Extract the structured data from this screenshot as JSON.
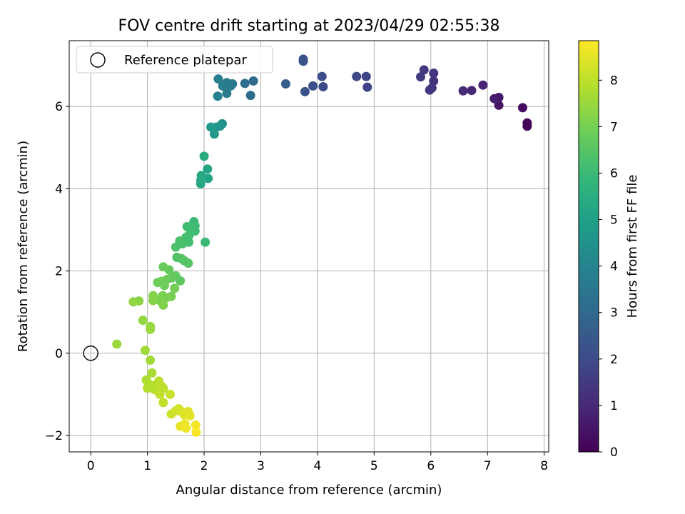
{
  "chart_data": {
    "type": "scatter",
    "title": "FOV centre drift starting at 2023/04/29 02:55:38",
    "xlabel": "Angular distance from reference (arcmin)",
    "ylabel": "Rotation from reference (arcmin)",
    "xlim": [
      -0.38,
      8.08
    ],
    "ylim": [
      -2.4,
      7.6
    ],
    "xticks": [
      0,
      1,
      2,
      3,
      4,
      5,
      6,
      7,
      8
    ],
    "yticks": [
      -2,
      0,
      2,
      4,
      6
    ],
    "xtick_labels": [
      "0",
      "1",
      "2",
      "3",
      "4",
      "5",
      "6",
      "7",
      "8"
    ],
    "ytick_labels": [
      "−2",
      "0",
      "2",
      "4",
      "6"
    ],
    "grid": true,
    "legend": {
      "position": "top-left",
      "entries": [
        "Reference platepar"
      ]
    },
    "reference_point": {
      "x": 0,
      "y": 0
    },
    "colorbar": {
      "label": "Hours from first FF file",
      "colormap": "viridis",
      "range": [
        0,
        8.85
      ],
      "ticks": [
        0,
        1,
        2,
        3,
        4,
        5,
        6,
        7,
        8
      ],
      "tick_labels": [
        "0",
        "1",
        "2",
        "3",
        "4",
        "5",
        "6",
        "7",
        "8"
      ]
    },
    "points": [
      {
        "x": 7.7,
        "y": 5.52,
        "c": 0.05
      },
      {
        "x": 7.7,
        "y": 5.6,
        "c": 0.1
      },
      {
        "x": 7.62,
        "y": 5.97,
        "c": 0.3
      },
      {
        "x": 7.2,
        "y": 6.03,
        "c": 0.5
      },
      {
        "x": 7.2,
        "y": 6.22,
        "c": 0.6
      },
      {
        "x": 7.12,
        "y": 6.19,
        "c": 0.7
      },
      {
        "x": 6.92,
        "y": 6.52,
        "c": 0.9
      },
      {
        "x": 6.72,
        "y": 6.39,
        "c": 1.0
      },
      {
        "x": 6.57,
        "y": 6.38,
        "c": 1.1
      },
      {
        "x": 6.05,
        "y": 6.62,
        "c": 1.3
      },
      {
        "x": 6.05,
        "y": 6.81,
        "c": 1.35
      },
      {
        "x": 6.02,
        "y": 6.45,
        "c": 1.4
      },
      {
        "x": 5.98,
        "y": 6.4,
        "c": 1.45
      },
      {
        "x": 5.88,
        "y": 6.89,
        "c": 1.5
      },
      {
        "x": 5.82,
        "y": 6.72,
        "c": 1.55
      },
      {
        "x": 4.88,
        "y": 6.47,
        "c": 1.8
      },
      {
        "x": 4.86,
        "y": 6.73,
        "c": 1.85
      },
      {
        "x": 4.69,
        "y": 6.73,
        "c": 1.9
      },
      {
        "x": 4.1,
        "y": 6.48,
        "c": 2.0
      },
      {
        "x": 4.08,
        "y": 6.73,
        "c": 2.05
      },
      {
        "x": 3.92,
        "y": 6.5,
        "c": 2.1
      },
      {
        "x": 3.78,
        "y": 6.36,
        "c": 2.2
      },
      {
        "x": 3.75,
        "y": 7.1,
        "c": 2.25
      },
      {
        "x": 3.75,
        "y": 7.15,
        "c": 2.3
      },
      {
        "x": 3.44,
        "y": 6.55,
        "c": 2.6
      },
      {
        "x": 2.87,
        "y": 6.62,
        "c": 3.0
      },
      {
        "x": 2.82,
        "y": 6.27,
        "c": 3.1
      },
      {
        "x": 2.72,
        "y": 6.56,
        "c": 3.2
      },
      {
        "x": 2.5,
        "y": 6.55,
        "c": 3.5
      },
      {
        "x": 2.47,
        "y": 6.5,
        "c": 3.6
      },
      {
        "x": 2.4,
        "y": 6.58,
        "c": 3.65
      },
      {
        "x": 2.4,
        "y": 6.32,
        "c": 3.7
      },
      {
        "x": 2.33,
        "y": 6.5,
        "c": 3.75
      },
      {
        "x": 2.25,
        "y": 6.67,
        "c": 3.8
      },
      {
        "x": 2.24,
        "y": 6.25,
        "c": 3.85
      },
      {
        "x": 2.32,
        "y": 5.58,
        "c": 4.4
      },
      {
        "x": 2.28,
        "y": 5.52,
        "c": 4.5
      },
      {
        "x": 2.22,
        "y": 5.5,
        "c": 4.6
      },
      {
        "x": 2.18,
        "y": 5.33,
        "c": 4.7
      },
      {
        "x": 2.12,
        "y": 5.5,
        "c": 4.8
      },
      {
        "x": 2.07,
        "y": 4.25,
        "c": 5.1
      },
      {
        "x": 2.06,
        "y": 4.48,
        "c": 5.2
      },
      {
        "x": 2.0,
        "y": 4.79,
        "c": 5.4
      },
      {
        "x": 1.95,
        "y": 4.32,
        "c": 5.3
      },
      {
        "x": 1.94,
        "y": 4.12,
        "c": 5.25
      },
      {
        "x": 1.94,
        "y": 4.2,
        "c": 5.3
      },
      {
        "x": 2.02,
        "y": 2.7,
        "c": 6.0
      },
      {
        "x": 1.82,
        "y": 3.2,
        "c": 6.0
      },
      {
        "x": 1.84,
        "y": 3.1,
        "c": 6.05
      },
      {
        "x": 1.84,
        "y": 2.97,
        "c": 6.1
      },
      {
        "x": 1.78,
        "y": 3.05,
        "c": 6.1
      },
      {
        "x": 1.74,
        "y": 2.88,
        "c": 6.15
      },
      {
        "x": 1.7,
        "y": 3.08,
        "c": 6.1
      },
      {
        "x": 1.68,
        "y": 2.82,
        "c": 6.2
      },
      {
        "x": 1.73,
        "y": 2.7,
        "c": 6.2
      },
      {
        "x": 1.62,
        "y": 2.66,
        "c": 6.25
      },
      {
        "x": 1.57,
        "y": 2.73,
        "c": 6.3
      },
      {
        "x": 1.5,
        "y": 2.58,
        "c": 6.35
      },
      {
        "x": 1.52,
        "y": 2.33,
        "c": 6.4
      },
      {
        "x": 1.6,
        "y": 2.3,
        "c": 6.45
      },
      {
        "x": 1.65,
        "y": 2.25,
        "c": 6.5
      },
      {
        "x": 1.72,
        "y": 2.19,
        "c": 6.5
      },
      {
        "x": 1.58,
        "y": 1.76,
        "c": 6.6
      },
      {
        "x": 1.5,
        "y": 1.88,
        "c": 6.65
      },
      {
        "x": 1.43,
        "y": 1.83,
        "c": 6.7
      },
      {
        "x": 1.38,
        "y": 2.03,
        "c": 6.7
      },
      {
        "x": 1.28,
        "y": 2.1,
        "c": 6.8
      },
      {
        "x": 1.35,
        "y": 1.8,
        "c": 6.8
      },
      {
        "x": 1.3,
        "y": 1.65,
        "c": 6.85
      },
      {
        "x": 1.25,
        "y": 1.75,
        "c": 6.9
      },
      {
        "x": 1.18,
        "y": 1.72,
        "c": 6.9
      },
      {
        "x": 1.48,
        "y": 1.58,
        "c": 6.95
      },
      {
        "x": 1.42,
        "y": 1.38,
        "c": 7.0
      },
      {
        "x": 1.33,
        "y": 1.35,
        "c": 7.05
      },
      {
        "x": 1.27,
        "y": 1.4,
        "c": 7.05
      },
      {
        "x": 1.22,
        "y": 1.28,
        "c": 7.1
      },
      {
        "x": 1.28,
        "y": 1.17,
        "c": 7.15
      },
      {
        "x": 1.1,
        "y": 1.4,
        "c": 7.2
      },
      {
        "x": 1.1,
        "y": 1.28,
        "c": 7.25
      },
      {
        "x": 0.85,
        "y": 1.27,
        "c": 7.3
      },
      {
        "x": 0.75,
        "y": 1.25,
        "c": 7.35
      },
      {
        "x": 0.92,
        "y": 0.8,
        "c": 7.4
      },
      {
        "x": 1.05,
        "y": 0.65,
        "c": 7.45
      },
      {
        "x": 1.05,
        "y": 0.58,
        "c": 7.5
      },
      {
        "x": 0.46,
        "y": 0.22,
        "c": 7.5
      },
      {
        "x": 0.96,
        "y": 0.07,
        "c": 7.6
      },
      {
        "x": 1.05,
        "y": -0.17,
        "c": 7.65
      },
      {
        "x": 1.08,
        "y": -0.48,
        "c": 7.7
      },
      {
        "x": 0.98,
        "y": -0.65,
        "c": 7.75
      },
      {
        "x": 1.02,
        "y": -0.75,
        "c": 7.8
      },
      {
        "x": 1.0,
        "y": -0.85,
        "c": 7.85
      },
      {
        "x": 1.08,
        "y": -0.78,
        "c": 7.85
      },
      {
        "x": 1.12,
        "y": -0.88,
        "c": 7.9
      },
      {
        "x": 1.18,
        "y": -0.92,
        "c": 7.9
      },
      {
        "x": 1.2,
        "y": -0.68,
        "c": 7.95
      },
      {
        "x": 1.25,
        "y": -0.8,
        "c": 8.0
      },
      {
        "x": 1.28,
        "y": -0.85,
        "c": 8.0
      },
      {
        "x": 1.22,
        "y": -1.0,
        "c": 8.05
      },
      {
        "x": 1.28,
        "y": -1.2,
        "c": 8.1
      },
      {
        "x": 1.4,
        "y": -1.0,
        "c": 8.15
      },
      {
        "x": 1.42,
        "y": -1.48,
        "c": 8.2
      },
      {
        "x": 1.5,
        "y": -1.4,
        "c": 8.25
      },
      {
        "x": 1.55,
        "y": -1.35,
        "c": 8.3
      },
      {
        "x": 1.6,
        "y": -1.42,
        "c": 8.35
      },
      {
        "x": 1.65,
        "y": -1.5,
        "c": 8.4
      },
      {
        "x": 1.72,
        "y": -1.42,
        "c": 8.45
      },
      {
        "x": 1.75,
        "y": -1.52,
        "c": 8.5
      },
      {
        "x": 1.58,
        "y": -1.78,
        "c": 8.55
      },
      {
        "x": 1.66,
        "y": -1.72,
        "c": 8.6
      },
      {
        "x": 1.68,
        "y": -1.82,
        "c": 8.65
      },
      {
        "x": 1.85,
        "y": -1.75,
        "c": 8.7
      },
      {
        "x": 1.86,
        "y": -1.92,
        "c": 8.8
      }
    ]
  }
}
